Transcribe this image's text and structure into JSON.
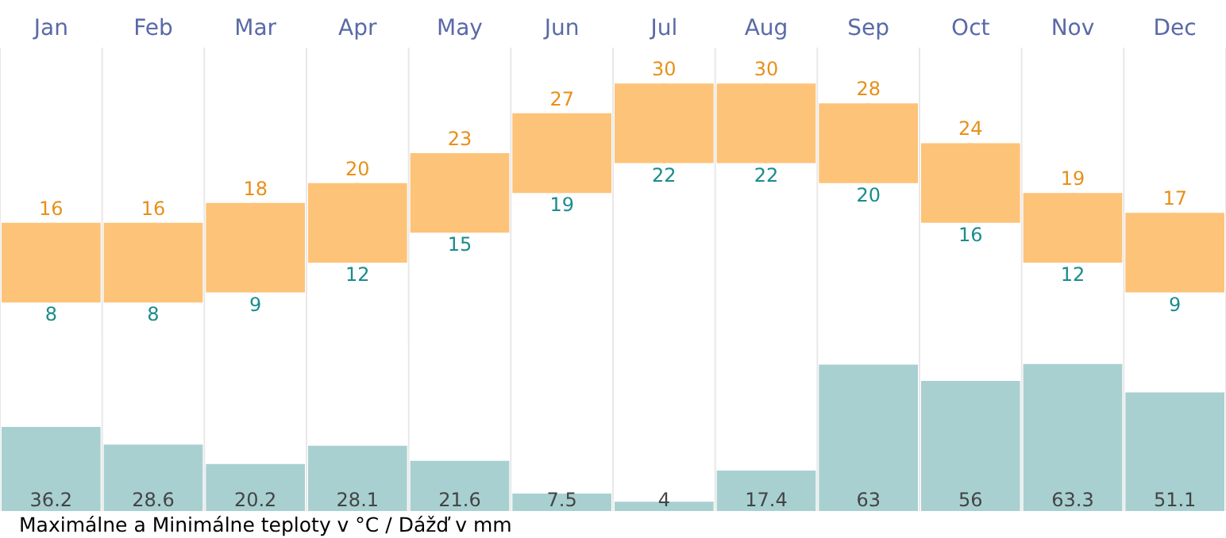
{
  "chart_data": [
    {
      "type": "candlestick",
      "categories": [
        "Jan",
        "Feb",
        "Mar",
        "Apr",
        "May",
        "Jun",
        "Jul",
        "Aug",
        "Sep",
        "Oct",
        "Nov",
        "Dec"
      ],
      "ohlc": [
        [
          8,
          16,
          8,
          16
        ],
        [
          8,
          16,
          8,
          16
        ],
        [
          9,
          18,
          9,
          18
        ],
        [
          12,
          20,
          12,
          20
        ],
        [
          15,
          23,
          15,
          23
        ],
        [
          19,
          27,
          19,
          27
        ],
        [
          22,
          30,
          22,
          30
        ],
        [
          22,
          30,
          22,
          30
        ],
        [
          20,
          28,
          20,
          28
        ],
        [
          16,
          24,
          16,
          24
        ],
        [
          12,
          19,
          12,
          19
        ],
        [
          9,
          17,
          9,
          17
        ]
      ],
      "color": "#fdc378",
      "tick_labels": "x",
      "grid": "x",
      "annotations": [
        {
          "text": "16",
          "x": "Jan",
          "y": 16
        },
        {
          "text": "16",
          "x": "Feb",
          "y": 16
        },
        {
          "text": "18",
          "x": "Mar",
          "y": 18
        },
        {
          "text": "20",
          "x": "Apr",
          "y": 20
        },
        {
          "text": "23",
          "x": "May",
          "y": 23
        },
        {
          "text": "27",
          "x": "Jun",
          "y": 27
        },
        {
          "text": "30",
          "x": "Jul",
          "y": 30
        },
        {
          "text": "30",
          "x": "Aug",
          "y": 30
        },
        {
          "text": "28",
          "x": "Sep",
          "y": 28
        },
        {
          "text": "24",
          "x": "Oct",
          "y": 24
        },
        {
          "text": "19",
          "x": "Nov",
          "y": 19
        },
        {
          "text": "17",
          "x": "Dec",
          "y": 17
        },
        {
          "text": "8",
          "x": "Jan",
          "y": 8
        },
        {
          "text": "8",
          "x": "Feb",
          "y": 8
        },
        {
          "text": "9",
          "x": "Mar",
          "y": 9
        },
        {
          "text": "12",
          "x": "Apr",
          "y": 12
        },
        {
          "text": "15",
          "x": "May",
          "y": 15
        },
        {
          "text": "19",
          "x": "Jun",
          "y": 19
        },
        {
          "text": "22",
          "x": "Jul",
          "y": 22
        },
        {
          "text": "22",
          "x": "Aug",
          "y": 22
        },
        {
          "text": "20",
          "x": "Sep",
          "y": 20
        },
        {
          "text": "16",
          "x": "Oct",
          "y": 16
        },
        {
          "text": "12",
          "x": "Nov",
          "y": 12
        },
        {
          "text": "9",
          "x": "Dec",
          "y": 9
        }
      ]
    },
    {
      "type": "bar",
      "categories": [
        null,
        null,
        null,
        null,
        null,
        null,
        null,
        null,
        null,
        null,
        null,
        null
      ],
      "series": [
        {
          "color": "#a9d0d1",
          "values": [
            36.2,
            28.6,
            20.2,
            28.1,
            21.6,
            7.5,
            4,
            17.4,
            63,
            56,
            63.3,
            51.1
          ]
        }
      ],
      "data_labels": true,
      "tick_labels": false,
      "grid": "x",
      "annotations": [
        "Maximálne a Minimálne teploty v °C / Dážď v mm"
      ]
    }
  ]
}
